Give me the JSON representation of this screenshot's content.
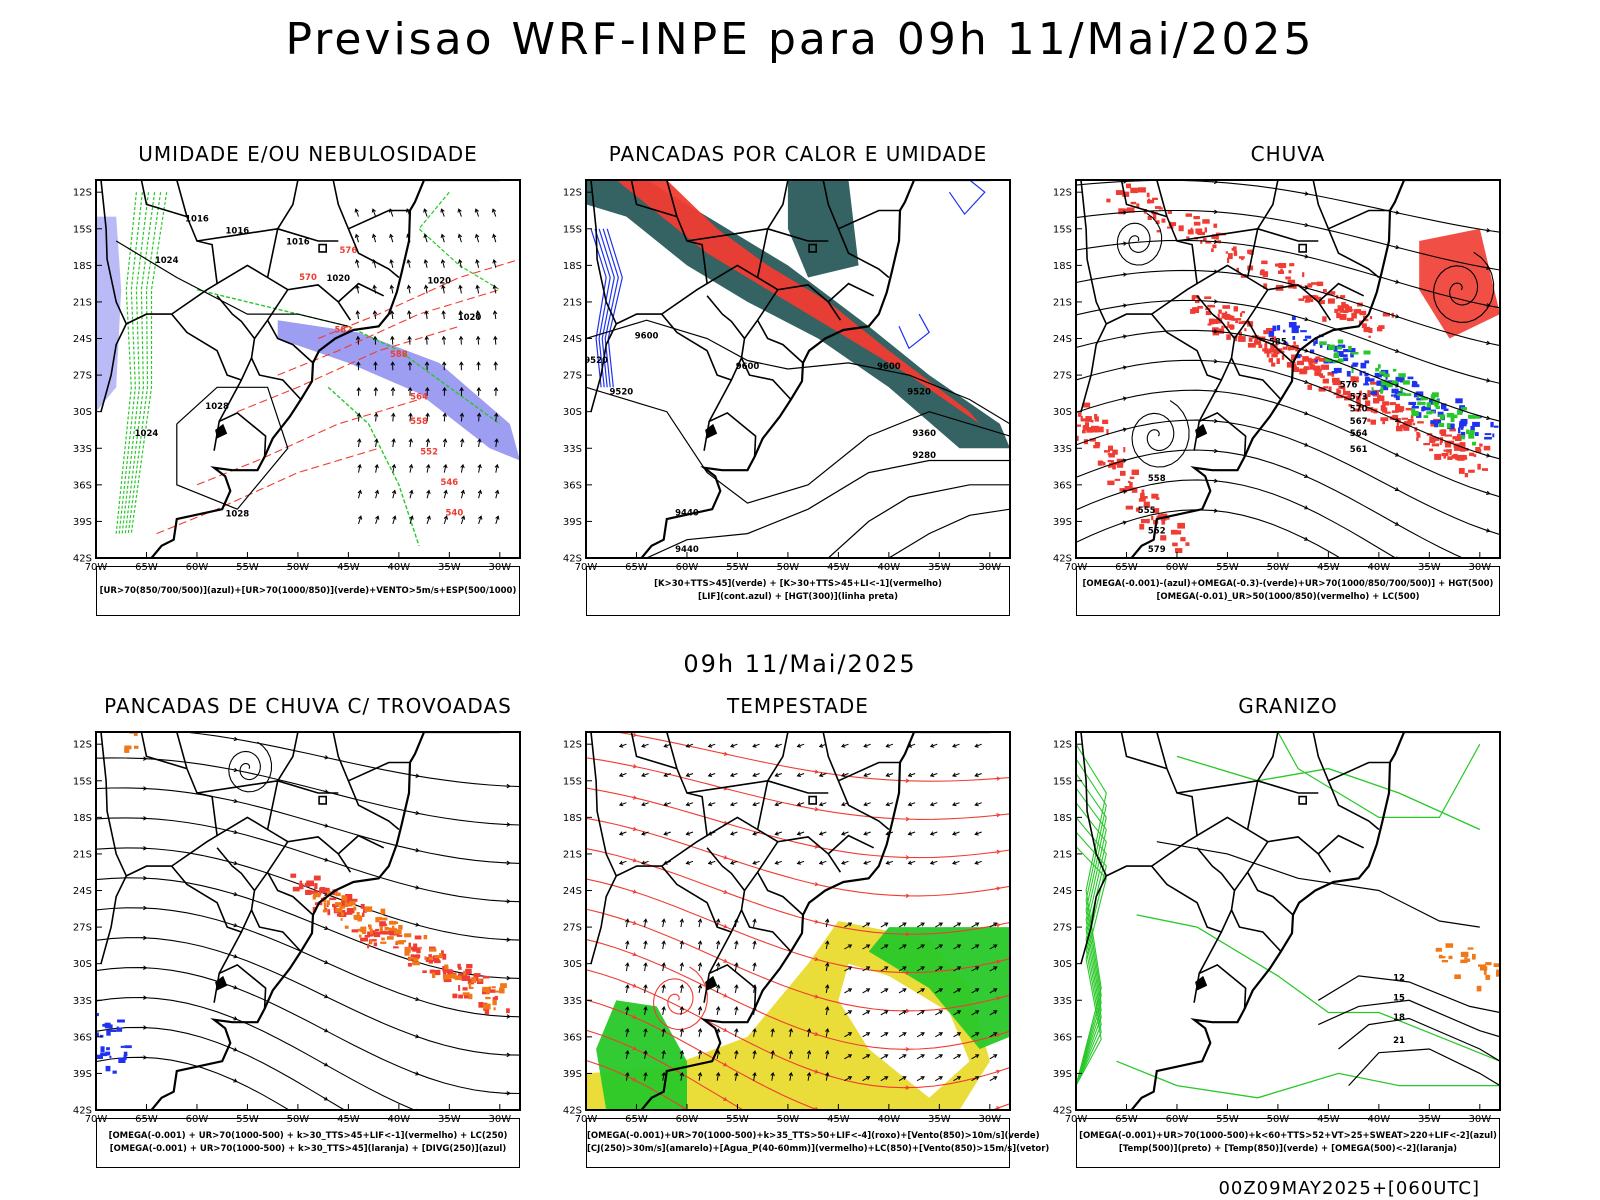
{
  "header": {
    "title": "Previsao WRF-INPE  para 09h 11/Mai/2025"
  },
  "middle": {
    "title": "09h 11/Mai/2025"
  },
  "footer": {
    "run_info": "00Z09MAY2025+[060UTC]"
  },
  "axes": {
    "lat_labels": [
      "12S",
      "15S",
      "18S",
      "21S",
      "24S",
      "27S",
      "30S",
      "33S",
      "36S",
      "39S",
      "42S"
    ],
    "lon_labels": [
      "70W",
      "65W",
      "60W",
      "55W",
      "50W",
      "45W",
      "40W",
      "35W",
      "30W"
    ]
  },
  "panels": [
    {
      "id": "umidade",
      "title": "UMIDADE E/OU NEBULOSIDADE",
      "legend": [
        "[UR>70(850/700/500)](azul)+[UR>70(1000/850)](verde)+VENTO>5m/s+ESP(500/1000)"
      ],
      "contour_labels": [
        "1016",
        "1016",
        "1016",
        "1020",
        "1020",
        "1020",
        "1024",
        "1024",
        "1028",
        "1028",
        "570",
        "576",
        "582",
        "588",
        "564",
        "558",
        "552",
        "546",
        "540"
      ]
    },
    {
      "id": "pancadas_calor",
      "title": "PANCADAS POR CALOR E UMIDADE",
      "legend": [
        "[K>30+TTS>45](verde) + [K>30+TTS>45+LI<-1](vermelho)",
        "[LIF](cont.azul) + [HGT(300)](linha preta)"
      ],
      "contour_labels": [
        "9600",
        "9600",
        "9600",
        "9520",
        "9520",
        "9520",
        "9440",
        "9440",
        "9360",
        "9280"
      ]
    },
    {
      "id": "chuva",
      "title": "CHUVA",
      "legend": [
        "[OMEGA(-0.001)-(azul)+OMEGA(-0.3)-(verde)+UR>70(1000/850/700/500)] + HGT(500)",
        "[OMEGA(-0.01)_UR>50(1000/850)(vermelho) + LC(500)"
      ],
      "contour_labels": [
        "585",
        "576",
        "573",
        "570",
        "567",
        "564",
        "561",
        "558",
        "555",
        "552",
        "579"
      ]
    },
    {
      "id": "pancadas_trovoadas",
      "title": "PANCADAS DE CHUVA C/ TROVOADAS",
      "legend": [
        "[OMEGA(-0.001) + UR>70(1000-500) + k>30_TTS>45+LIF<-1](vermelho) + LC(250)",
        "[OMEGA(-0.001) + UR>70(1000-500) + k>30_TTS>45](laranja) + [DIVG(250)](azul)"
      ],
      "contour_labels": []
    },
    {
      "id": "tempestade",
      "title": "TEMPESTADE",
      "legend": [
        "[OMEGA(-0.001)+UR>70(1000-500)+k>35_TTS>50+LIF<-4](roxo)+[Vento(850)>10m/s](verde)",
        "[CJ(250)>30m/s](amarelo)+[Agua_P(40-60mm)](vermelho)+LC(850)+[Vento(850)>15m/s](vetor)"
      ],
      "contour_labels": []
    },
    {
      "id": "granizo",
      "title": "GRANIZO",
      "legend": [
        "[OMEGA(-0.001)+UR>70(1000-500)+k<60+TTS>52+VT>25+SWEAT>220+LIF<-2](azul)",
        "[Temp(500)](preto) + [Temp(850)](verde) + [OMEGA(500)<-2](laranja)"
      ],
      "contour_labels": [
        "12",
        "15",
        "18",
        "21"
      ]
    }
  ],
  "colors": {
    "red": "#f03c32",
    "green": "#28c828",
    "blue": "#1e32f0",
    "lavender": "#8c8cf0",
    "teal": "#2a5a5a",
    "yellow": "#e8d824",
    "orange": "#f07818",
    "black": "#000000"
  }
}
